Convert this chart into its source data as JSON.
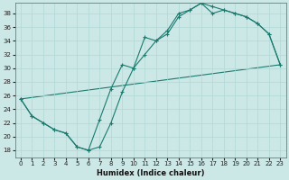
{
  "xlabel": "Humidex (Indice chaleur)",
  "xlim": [
    -0.5,
    23.5
  ],
  "ylim": [
    17,
    39.5
  ],
  "yticks": [
    18,
    20,
    22,
    24,
    26,
    28,
    30,
    32,
    34,
    36,
    38
  ],
  "xticks": [
    0,
    1,
    2,
    3,
    4,
    5,
    6,
    7,
    8,
    9,
    10,
    11,
    12,
    13,
    14,
    15,
    16,
    17,
    18,
    19,
    20,
    21,
    22,
    23
  ],
  "bg_color": "#cce8e6",
  "line_color": "#1a7a6e",
  "grid_color": "#b0d8d4",
  "line1_x": [
    0,
    1,
    2,
    3,
    4,
    5,
    6,
    7,
    8,
    9,
    10,
    11,
    12,
    13,
    14,
    15,
    16,
    17,
    18,
    19,
    20,
    21,
    22,
    23
  ],
  "line1_y": [
    25.5,
    23.0,
    22.0,
    21.0,
    20.5,
    18.5,
    18.0,
    18.5,
    22.0,
    26.5,
    30.0,
    34.5,
    34.0,
    35.5,
    38.0,
    38.5,
    39.5,
    39.0,
    38.5,
    38.0,
    37.5,
    36.5,
    35.0,
    30.5
  ],
  "line2_x": [
    0,
    1,
    2,
    3,
    4,
    5,
    6,
    7,
    8,
    9,
    10,
    11,
    12,
    13,
    14,
    15,
    16,
    17,
    18,
    19,
    20,
    21,
    22,
    23
  ],
  "line2_y": [
    25.5,
    23.0,
    22.0,
    21.0,
    20.5,
    18.5,
    18.0,
    22.5,
    27.0,
    30.5,
    30.0,
    32.0,
    34.0,
    35.0,
    37.5,
    38.5,
    39.5,
    38.0,
    38.5,
    38.0,
    37.5,
    36.5,
    35.0,
    30.5
  ],
  "line3_x": [
    0,
    23
  ],
  "line3_y": [
    25.5,
    30.5
  ]
}
